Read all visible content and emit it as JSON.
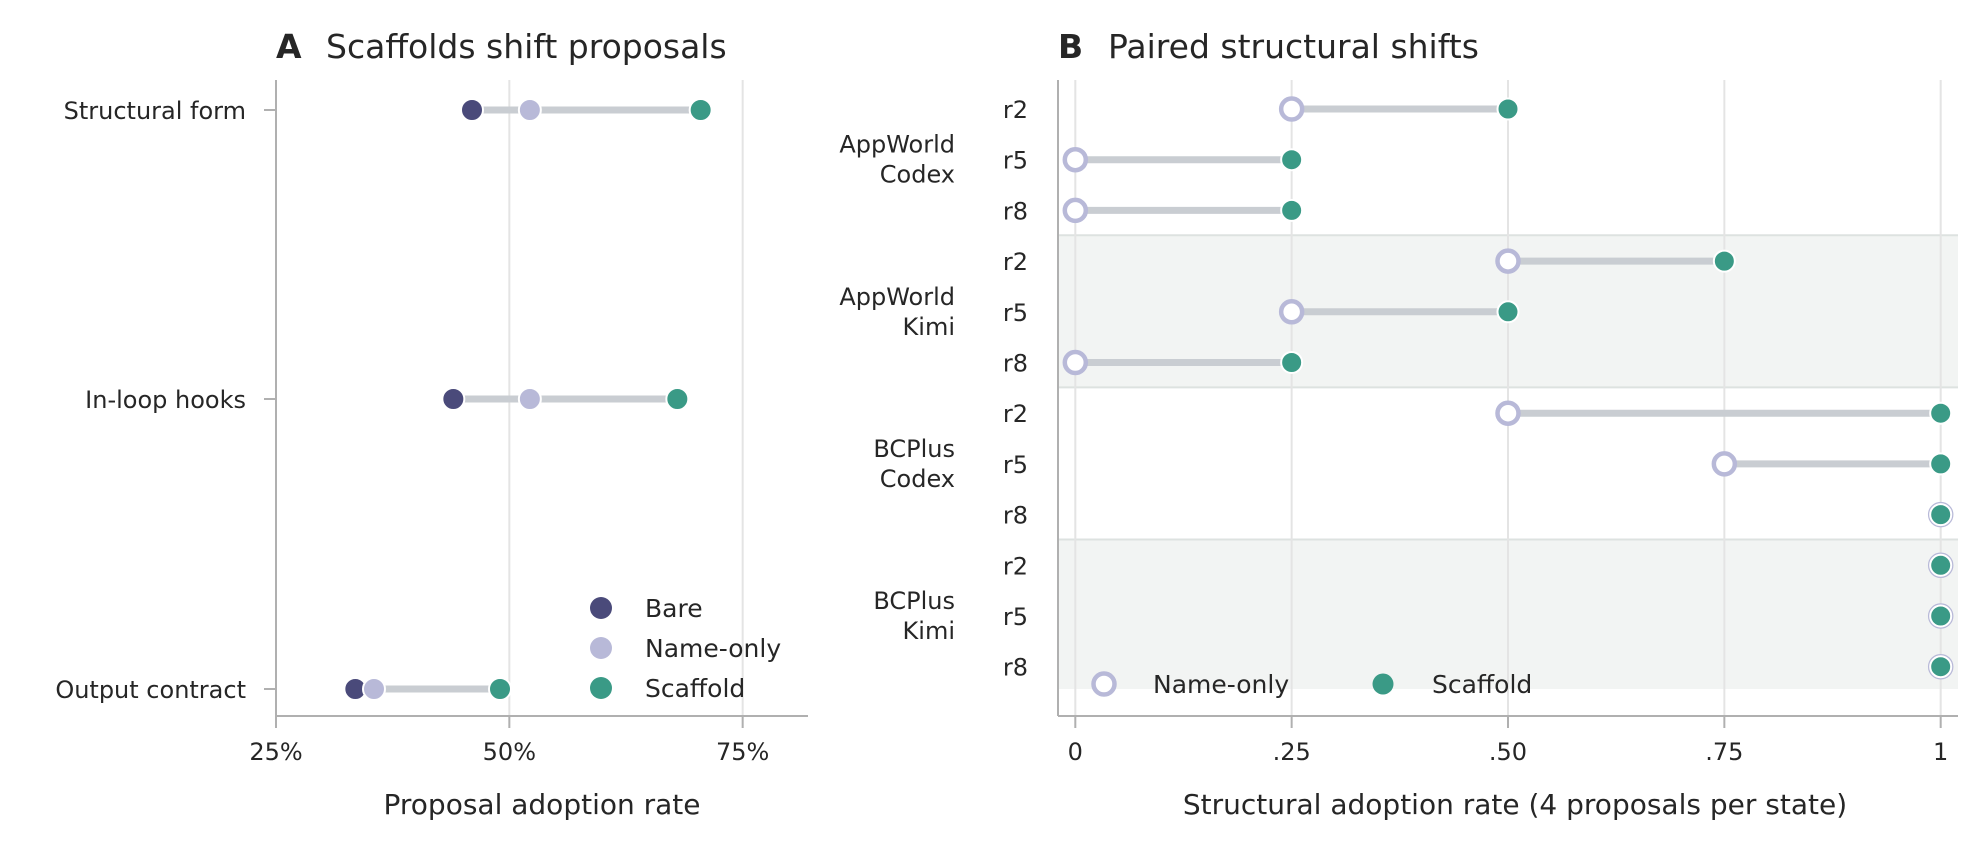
{
  "colors": {
    "bare": "#4a4a7a",
    "name_only": "#b8b9d8",
    "scaffold": "#3a9a86",
    "connector": "#c9cdd2",
    "grid": "#e4e4e4",
    "axis": "#b0b0b0",
    "band": "#f2f4f3"
  },
  "chart_data": [
    {
      "type": "dot",
      "panel": "A",
      "title": "Scaffolds shift proposals",
      "xlabel": "Proposal adoption rate",
      "ylabel": "",
      "xlim": [
        25,
        82
      ],
      "xticks": [
        25,
        50,
        75
      ],
      "xtick_labels": [
        "25%",
        "50%",
        "75%"
      ],
      "categories": [
        "Structural form",
        "In-loop hooks",
        "Output contract"
      ],
      "series": [
        {
          "name": "Bare",
          "values": [
            46,
            44,
            33.5
          ]
        },
        {
          "name": "Name-only",
          "values": [
            52.2,
            52.2,
            35.5
          ]
        },
        {
          "name": "Scaffold",
          "values": [
            70.5,
            68,
            49
          ]
        }
      ],
      "legend_position": "bottom-right",
      "grid": "vertical"
    },
    {
      "type": "dot",
      "panel": "B",
      "title": "Paired structural shifts",
      "xlabel": "Structural adoption rate (4 proposals per state)",
      "ylabel": "",
      "xlim": [
        -0.02,
        1.02
      ],
      "xticks": [
        0,
        0.25,
        0.5,
        0.75,
        1
      ],
      "xtick_labels": [
        "0",
        ".25",
        ".50",
        ".75",
        "1"
      ],
      "groups": [
        {
          "label_lines": [
            "AppWorld",
            "Codex"
          ],
          "rows": [
            {
              "label": "r2",
              "name_only": 0.25,
              "scaffold": 0.5
            },
            {
              "label": "r5",
              "name_only": 0,
              "scaffold": 0.25
            },
            {
              "label": "r8",
              "name_only": 0,
              "scaffold": 0.25
            }
          ]
        },
        {
          "label_lines": [
            "AppWorld",
            "Kimi"
          ],
          "rows": [
            {
              "label": "r2",
              "name_only": 0.5,
              "scaffold": 0.75
            },
            {
              "label": "r5",
              "name_only": 0.25,
              "scaffold": 0.5
            },
            {
              "label": "r8",
              "name_only": 0,
              "scaffold": 0.25
            }
          ]
        },
        {
          "label_lines": [
            "BCPlus",
            "Codex"
          ],
          "rows": [
            {
              "label": "r2",
              "name_only": 0.5,
              "scaffold": 1
            },
            {
              "label": "r5",
              "name_only": 0.75,
              "scaffold": 1
            },
            {
              "label": "r8",
              "name_only": 1,
              "scaffold": 1
            }
          ]
        },
        {
          "label_lines": [
            "BCPlus",
            "Kimi"
          ],
          "rows": [
            {
              "label": "r2",
              "name_only": 1,
              "scaffold": 1
            },
            {
              "label": "r5",
              "name_only": 1,
              "scaffold": 1
            },
            {
              "label": "r8",
              "name_only": 1,
              "scaffold": 1
            }
          ]
        }
      ],
      "legend": [
        "Name-only",
        "Scaffold"
      ],
      "legend_position": "bottom-left",
      "grid": "vertical"
    }
  ]
}
